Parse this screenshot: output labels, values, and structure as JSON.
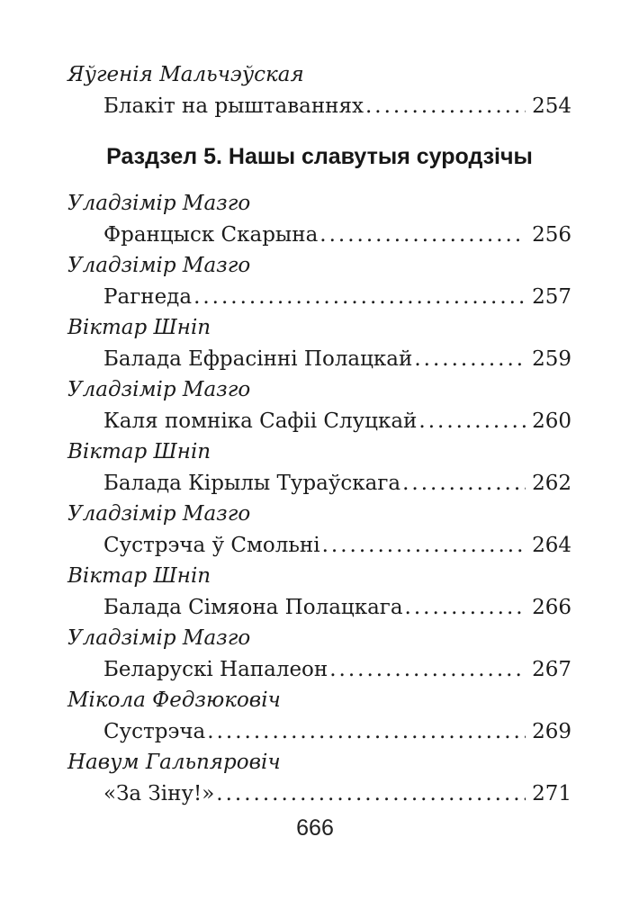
{
  "toc": {
    "entries_before_heading": [
      {
        "author": "Яўгенія Мальчэўская",
        "title": "Блакіт на рыштаваннях",
        "page": "254"
      }
    ],
    "section_heading": "Раздзел 5. Нашы славутыя суродзічы",
    "entries": [
      {
        "author": "Уладзімір Мазго",
        "title": "Францыск Скарына",
        "page": "256"
      },
      {
        "author": "Уладзімір Мазго",
        "title": "Рагнеда",
        "page": "257"
      },
      {
        "author": "Віктар Шніп",
        "title": "Балада Ефрасінні Полацкай",
        "page": "259"
      },
      {
        "author": "Уладзімір Мазго",
        "title": "Каля помніка Сафіі Слуцкай",
        "page": "260"
      },
      {
        "author": "Віктар Шніп",
        "title": "Балада Кірылы Тураўскага",
        "page": "262"
      },
      {
        "author": "Уладзімір Мазго",
        "title": "Сустрэча ў Смольні",
        "page": "264"
      },
      {
        "author": "Віктар Шніп",
        "title": "Балада Сімяона Полацкага",
        "page": "266"
      },
      {
        "author": "Уладзімір Мазго",
        "title": "Беларускі Напалеон",
        "page": "267"
      },
      {
        "author": "Мікола Федзюковіч",
        "title": "Сустрэча",
        "page": "269"
      },
      {
        "author": "Навум Гальпяровіч",
        "title": "«За Зіну!»",
        "page": "271"
      }
    ],
    "folio": "666"
  }
}
